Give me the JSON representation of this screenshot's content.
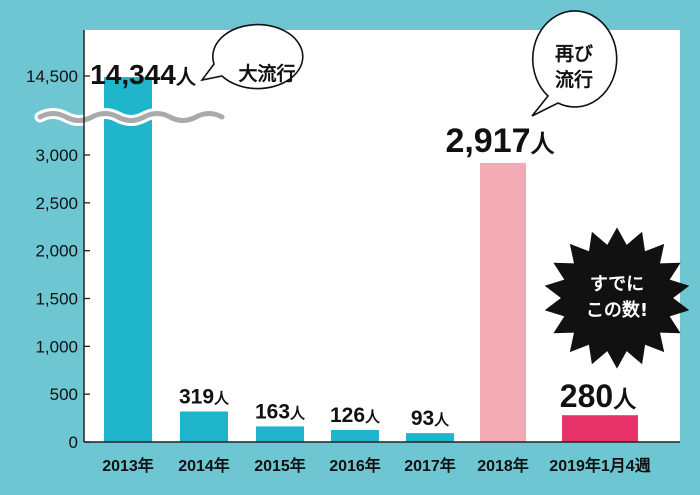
{
  "chart_data": {
    "type": "bar",
    "categories": [
      "2013年",
      "2014年",
      "2015年",
      "2016年",
      "2017年",
      "2018年",
      "2019年1月4週"
    ],
    "values": [
      14344,
      319,
      163,
      126,
      93,
      2917,
      280
    ],
    "data_labels": [
      {
        "number": "14,344",
        "unit": "人"
      },
      {
        "number": "319",
        "unit": "人"
      },
      {
        "number": "163",
        "unit": "人"
      },
      {
        "number": "126",
        "unit": "人"
      },
      {
        "number": "93",
        "unit": "人"
      },
      {
        "number": "2,917",
        "unit": "人"
      },
      {
        "number": "280",
        "unit": "人"
      }
    ],
    "bar_colors": [
      "#1fb6cc",
      "#1fb6cc",
      "#1fb6cc",
      "#1fb6cc",
      "#1fb6cc",
      "#f4aab4",
      "#e8336b"
    ],
    "y_ticks": [
      {
        "value": 0,
        "label": "0"
      },
      {
        "value": 500,
        "label": "500"
      },
      {
        "value": 1000,
        "label": "1,000"
      },
      {
        "value": 1500,
        "label": "1,500"
      },
      {
        "value": 2000,
        "label": "2,000"
      },
      {
        "value": 2500,
        "label": "2,500"
      },
      {
        "value": 3000,
        "label": "3,000"
      },
      {
        "value": 14500,
        "label": "14,500"
      }
    ],
    "ylim": [
      0,
      14500
    ],
    "axis_break": true,
    "grid": false,
    "title": "",
    "xlabel": "",
    "ylabel": "",
    "annotations": [
      {
        "kind": "speech-bubble",
        "lines": [
          "大流行"
        ],
        "category": "2013年"
      },
      {
        "kind": "speech-bubble",
        "lines": [
          "再び",
          "流行"
        ],
        "category": "2018年"
      },
      {
        "kind": "starburst",
        "lines": [
          "すでに",
          "この数!"
        ],
        "category": "2019年1月4週"
      }
    ]
  },
  "colors": {
    "background": "#6ec6d3",
    "plot_area": "#ffffff",
    "axis": "#222222",
    "break_line": "#aaaaaa",
    "burst": "#111111"
  }
}
